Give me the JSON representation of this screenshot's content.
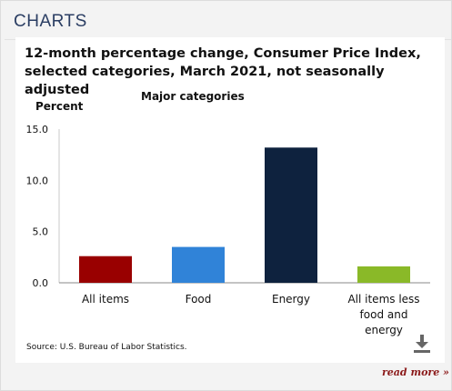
{
  "header": {
    "title": "CHARTS"
  },
  "chart_title": "12-month percentage change, Consumer Price Index, selected categories, March 2021, not seasonally adjusted",
  "chart_data": {
    "type": "bar",
    "title": "12-month percentage change, Consumer Price Index, selected categories, March 2021, not seasonally adjusted",
    "subtitle": "Major categories",
    "ylabel": "Percent",
    "xlabel": "",
    "ylim": [
      0,
      15
    ],
    "yticks": [
      "0.0",
      "5.0",
      "10.0",
      "15.0"
    ],
    "grid": false,
    "legend": "none",
    "categories": [
      [
        "All items"
      ],
      [
        "Food"
      ],
      [
        "Energy"
      ],
      [
        "All items less",
        "food and",
        "energy"
      ]
    ],
    "values": [
      2.6,
      3.5,
      13.2,
      1.6
    ],
    "colors": [
      "#990000",
      "#3083d8",
      "#0e223e",
      "#8ab928"
    ]
  },
  "source": "Source: U.S. Bureau of Labor Statistics.",
  "download_icon": "download-icon",
  "read_more": "read more »"
}
